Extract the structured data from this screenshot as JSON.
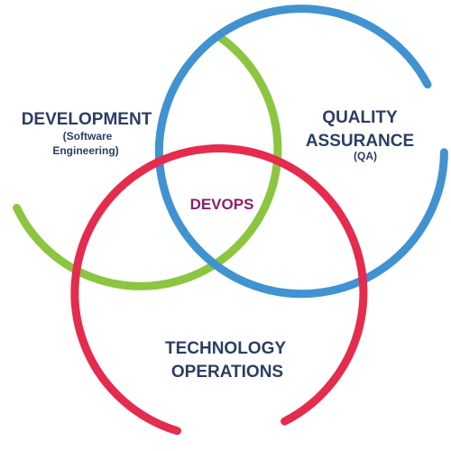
{
  "colors": {
    "development": "#8cc540",
    "quality": "#4192d0",
    "operations": "#e52c4d",
    "label_text": "#2b3e63",
    "center_text": "#8a1f6e"
  },
  "development": {
    "title": "DEVELOPMENT",
    "subtitle_line1": "(Software",
    "subtitle_line2": "Engineering)"
  },
  "quality_assurance": {
    "title_line1": "QUALITY",
    "title_line2": "ASSURANCE",
    "subtitle": "(QA)"
  },
  "operations": {
    "title_line1": "TECHNOLOGY",
    "title_line2": "OPERATIONS"
  },
  "center": {
    "label": "DEVOPS"
  }
}
